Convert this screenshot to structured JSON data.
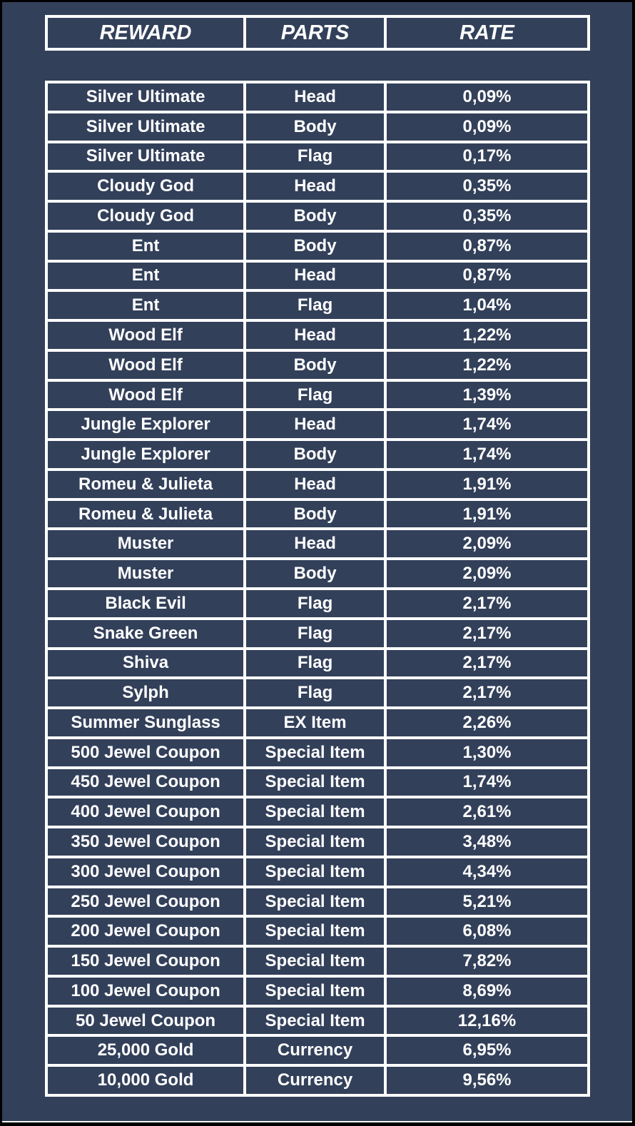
{
  "chart_data": {
    "type": "table",
    "columns": [
      "REWARD",
      "PARTS",
      "RATE"
    ],
    "rows": [
      [
        "Silver Ultimate",
        "Head",
        "0,09%"
      ],
      [
        "Silver Ultimate",
        "Body",
        "0,09%"
      ],
      [
        "Silver Ultimate",
        "Flag",
        "0,17%"
      ],
      [
        "Cloudy God",
        "Head",
        "0,35%"
      ],
      [
        "Cloudy God",
        "Body",
        "0,35%"
      ],
      [
        "Ent",
        "Body",
        "0,87%"
      ],
      [
        "Ent",
        "Head",
        "0,87%"
      ],
      [
        "Ent",
        "Flag",
        "1,04%"
      ],
      [
        "Wood Elf",
        "Head",
        "1,22%"
      ],
      [
        "Wood Elf",
        "Body",
        "1,22%"
      ],
      [
        "Wood Elf",
        "Flag",
        "1,39%"
      ],
      [
        "Jungle Explorer",
        "Head",
        "1,74%"
      ],
      [
        "Jungle Explorer",
        "Body",
        "1,74%"
      ],
      [
        "Romeu & Julieta",
        "Head",
        "1,91%"
      ],
      [
        "Romeu & Julieta",
        "Body",
        "1,91%"
      ],
      [
        "Muster",
        "Head",
        "2,09%"
      ],
      [
        "Muster",
        "Body",
        "2,09%"
      ],
      [
        "Black Evil",
        "Flag",
        "2,17%"
      ],
      [
        "Snake Green",
        "Flag",
        "2,17%"
      ],
      [
        "Shiva",
        "Flag",
        "2,17%"
      ],
      [
        "Sylph",
        "Flag",
        "2,17%"
      ],
      [
        "Summer Sunglass",
        "EX Item",
        "2,26%"
      ],
      [
        "500 Jewel Coupon",
        "Special Item",
        "1,30%"
      ],
      [
        "450 Jewel Coupon",
        "Special Item",
        "1,74%"
      ],
      [
        "400 Jewel Coupon",
        "Special Item",
        "2,61%"
      ],
      [
        "350 Jewel Coupon",
        "Special Item",
        "3,48%"
      ],
      [
        "300 Jewel Coupon",
        "Special Item",
        "4,34%"
      ],
      [
        "250 Jewel Coupon",
        "Special Item",
        "5,21%"
      ],
      [
        "200 Jewel Coupon",
        "Special Item",
        "6,08%"
      ],
      [
        "150 Jewel Coupon",
        "Special Item",
        "7,82%"
      ],
      [
        "100 Jewel Coupon",
        "Special Item",
        "8,69%"
      ],
      [
        "50 Jewel Coupon",
        "Special Item",
        "12,16%"
      ],
      [
        "25,000 Gold",
        "Currency",
        "6,95%"
      ],
      [
        "10,000 Gold",
        "Currency",
        "9,56%"
      ]
    ]
  },
  "colors": {
    "background": "#33405A",
    "outer_frame": "#000000",
    "grid_lines": "#FFFFFF",
    "text": "#FFFFFF"
  }
}
